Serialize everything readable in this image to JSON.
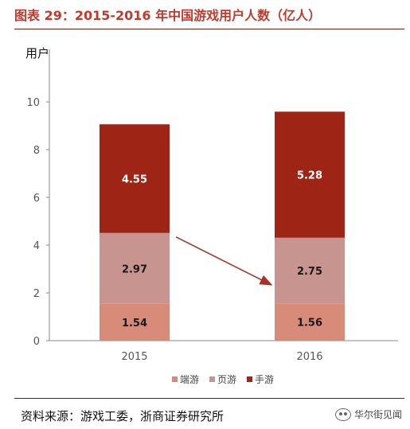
{
  "title": "图表 29：2015-2016 年中国游戏用户人数（亿人）",
  "source": "资料来源：游戏工委，浙商证券研究所",
  "watermark": "华尔街见闻",
  "chart_data": {
    "type": "bar",
    "stacked": true,
    "ylabel": "用户",
    "xlabel": "",
    "ylim": [
      0,
      10
    ],
    "yticks": [
      0,
      2,
      4,
      6,
      8,
      10
    ],
    "categories": [
      "2015",
      "2016"
    ],
    "series": [
      {
        "name": "端游",
        "values": [
          1.54,
          1.56
        ],
        "color": "#d98b7a"
      },
      {
        "name": "页游",
        "values": [
          2.97,
          2.75
        ],
        "color": "#c8948f"
      },
      {
        "name": "手游",
        "values": [
          4.55,
          5.28
        ],
        "color": "#9e2416"
      }
    ],
    "legend_position": "bottom",
    "grid": false,
    "annotation": "arrow from 2015 页游 to 2016 页游 (declining)"
  }
}
